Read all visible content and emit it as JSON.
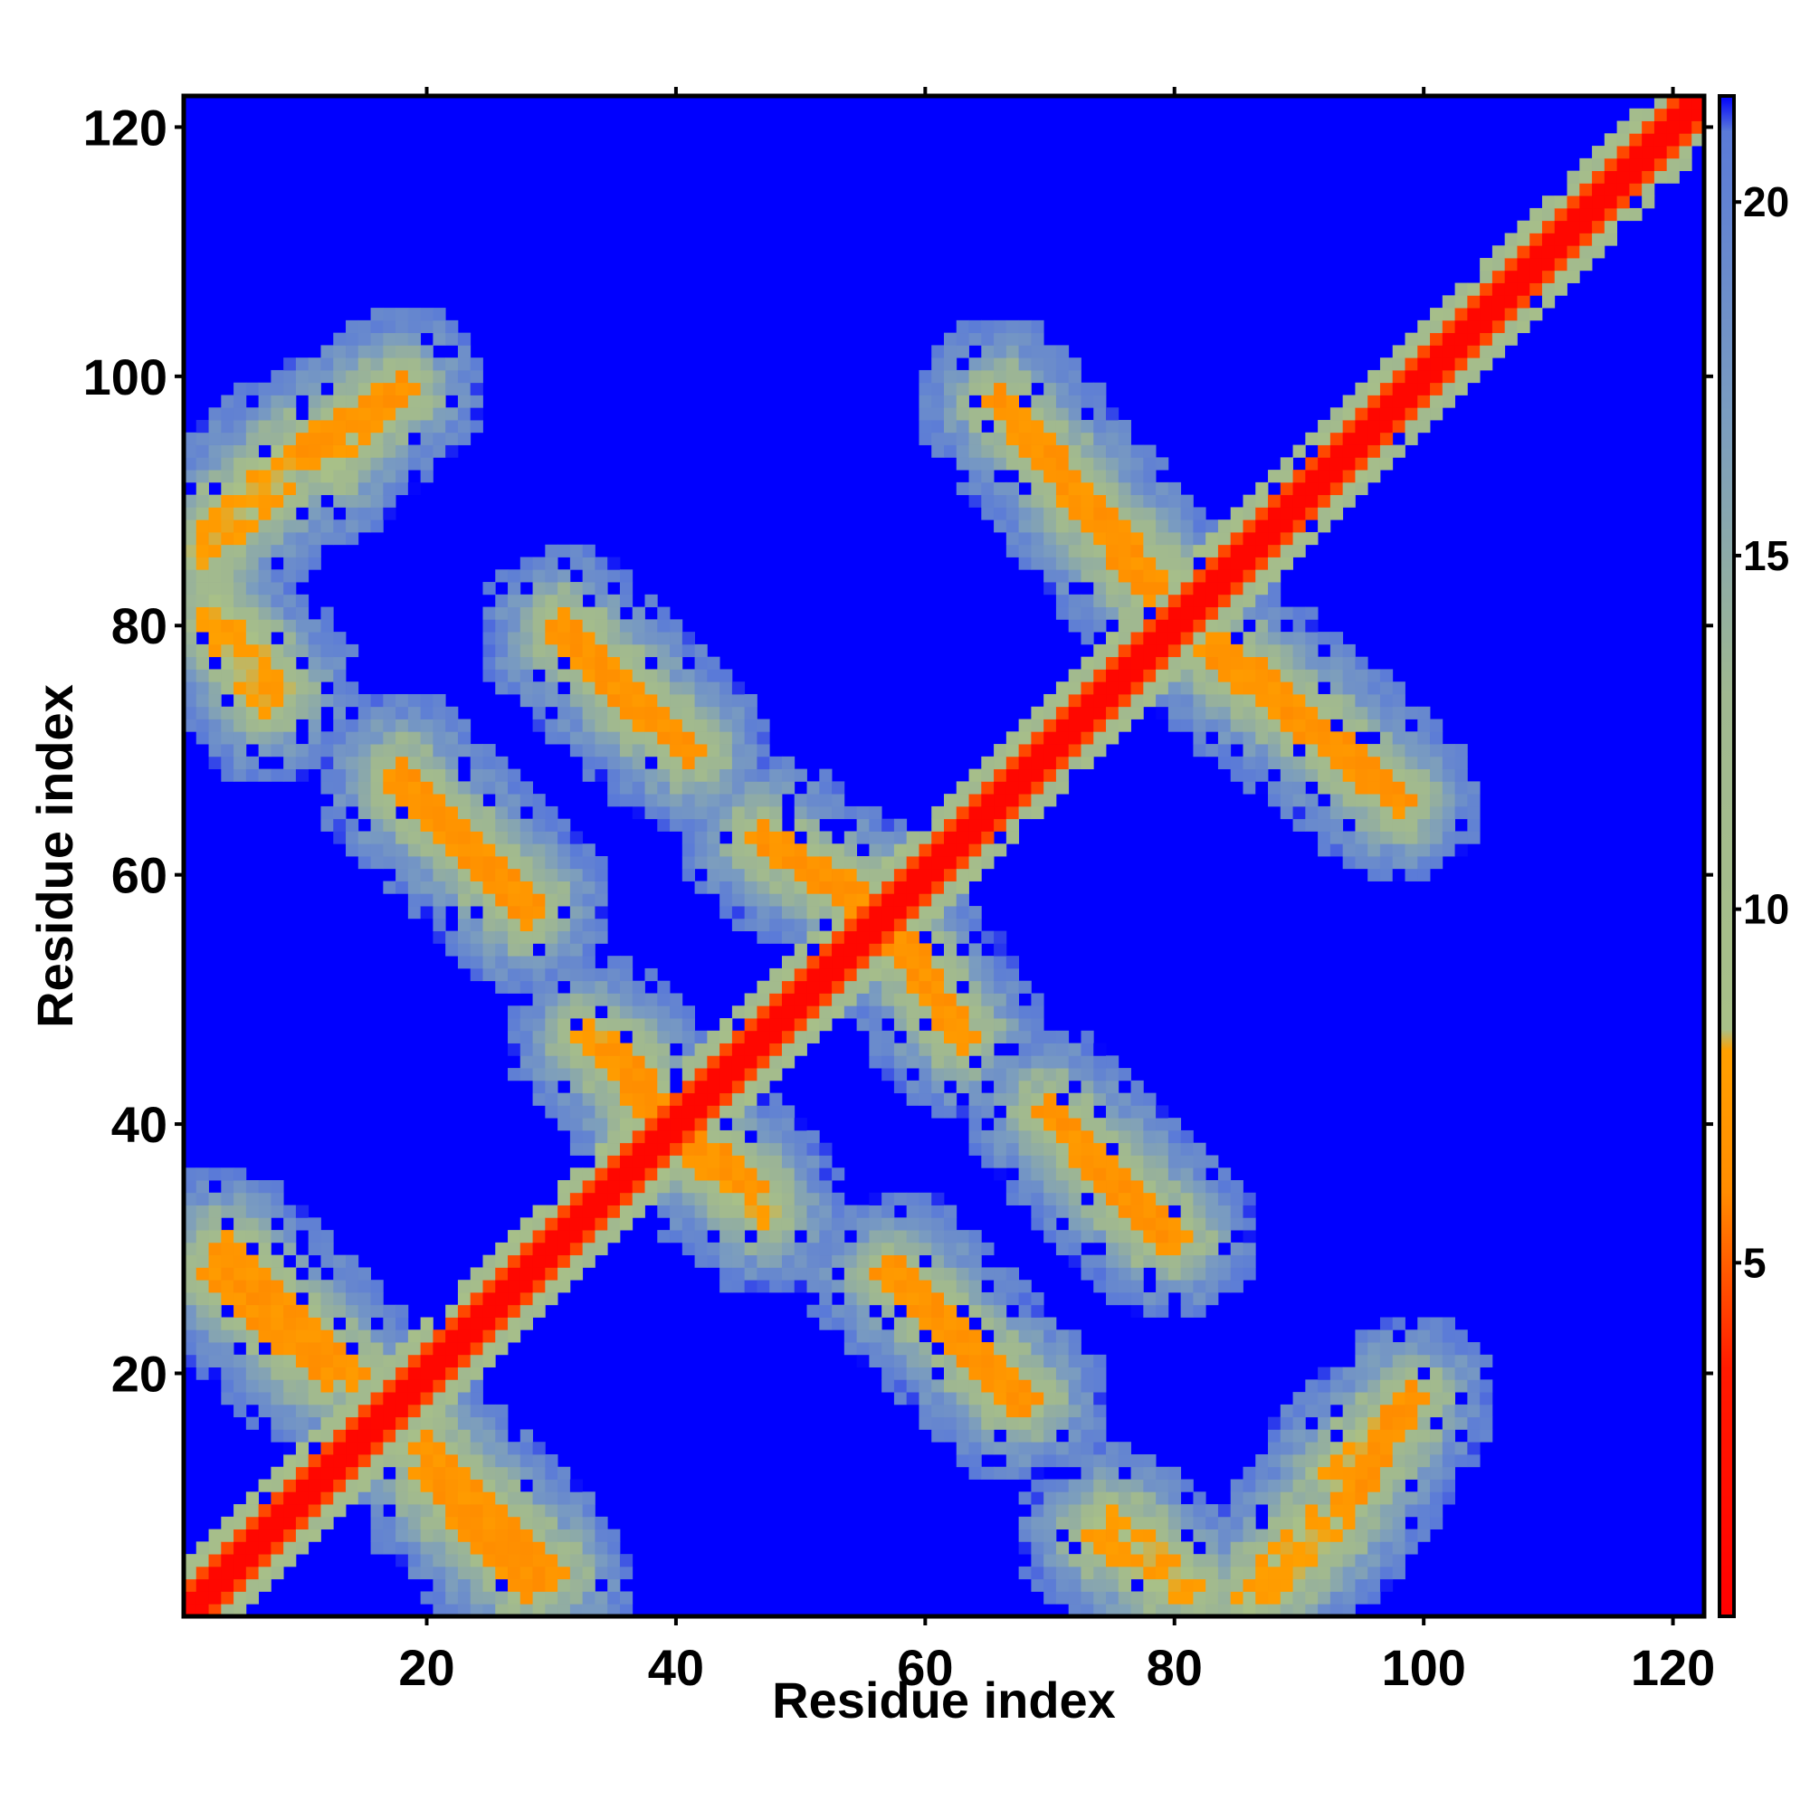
{
  "chart_data": {
    "type": "heatmap",
    "title": "",
    "xlabel": "Residue index",
    "ylabel": "Residue index",
    "n_residues": 122,
    "xlim": [
      0.5,
      122.5
    ],
    "ylim": [
      0.5,
      122.5
    ],
    "x_ticks": [
      20,
      40,
      60,
      80,
      100,
      120
    ],
    "y_ticks": [
      20,
      40,
      60,
      80,
      100,
      120
    ],
    "x_tick_labels": [
      "20",
      "40",
      "60",
      "80",
      "100",
      "120"
    ],
    "y_tick_labels": [
      "20",
      "40",
      "60",
      "80",
      "100",
      "120"
    ],
    "colorbar": {
      "range": [
        0,
        21.5
      ],
      "ticks": [
        5,
        10,
        15,
        20
      ],
      "tick_labels": [
        "5",
        "10",
        "15",
        "20"
      ],
      "stops": [
        {
          "value": 0,
          "color": "#ff0000"
        },
        {
          "value": 3.5,
          "color": "#ff1a00"
        },
        {
          "value": 6.0,
          "color": "#ff8c00"
        },
        {
          "value": 8.0,
          "color": "#ffa000"
        },
        {
          "value": 8.3,
          "color": "#a8c088"
        },
        {
          "value": 13.0,
          "color": "#a0b890"
        },
        {
          "value": 17.0,
          "color": "#7a9cc0"
        },
        {
          "value": 21.0,
          "color": "#5a7ad8"
        },
        {
          "value": 21.5,
          "color": "#0000ff"
        }
      ]
    },
    "description_values": {
      "cutoff": 21.5,
      "diagonal_distance": 0,
      "background_color": "#0000ff"
    },
    "contact_features": [
      {
        "kind": "anti",
        "x": [
          20,
          28
        ],
        "y": [
          12,
          3
        ],
        "value": 6
      },
      {
        "kind": "anti",
        "x": [
          4,
          14
        ],
        "y": [
          30,
          20
        ],
        "value": 6
      },
      {
        "kind": "anti",
        "x": [
          18,
          28
        ],
        "y": [
          68,
          57
        ],
        "value": 6
      },
      {
        "kind": "anti",
        "x": [
          31,
          40
        ],
        "y": [
          80,
          71
        ],
        "value": 6
      },
      {
        "kind": "anti",
        "x": [
          10,
          18
        ],
        "y": [
          94,
          99
        ],
        "value": 6
      },
      {
        "kind": "anti",
        "x": [
          2,
          8
        ],
        "y": [
          86,
          91
        ],
        "value": 7
      },
      {
        "kind": "anti",
        "x": [
          3,
          8
        ],
        "y": [
          81,
          75
        ],
        "value": 7
      },
      {
        "kind": "anti",
        "x": [
          37,
          46
        ],
        "y": [
          42,
          35
        ],
        "value": 6
      },
      {
        "kind": "anti",
        "x": [
          48,
          57
        ],
        "y": [
          62,
          57
        ],
        "value": 6
      },
      {
        "kind": "anti",
        "x": [
          57,
          63
        ],
        "y": [
          56,
          47
        ],
        "value": 6
      },
      {
        "kind": "anti",
        "x": [
          58,
          67
        ],
        "y": [
          28,
          18
        ],
        "value": 6
      },
      {
        "kind": "anti",
        "x": [
          70,
          79
        ],
        "y": [
          41,
          31
        ],
        "value": 6
      },
      {
        "kind": "anti",
        "x": [
          66,
          78
        ],
        "y": [
          98,
          84
        ],
        "value": 6
      },
      {
        "kind": "anti",
        "x": [
          83,
          97
        ],
        "y": [
          78,
          67
        ],
        "value": 6
      },
      {
        "kind": "anti",
        "x": [
          93,
          99
        ],
        "y": [
          12,
          18
        ],
        "value": 7
      },
      {
        "kind": "anti",
        "x": [
          88,
          93
        ],
        "y": [
          3,
          8
        ],
        "value": 7
      },
      {
        "kind": "anti",
        "x": [
          74,
          80
        ],
        "y": [
          7,
          3
        ],
        "value": 7
      },
      {
        "kind": "anti",
        "x": [
          33,
          38
        ],
        "y": [
          47,
          42
        ],
        "value": 7
      }
    ]
  }
}
